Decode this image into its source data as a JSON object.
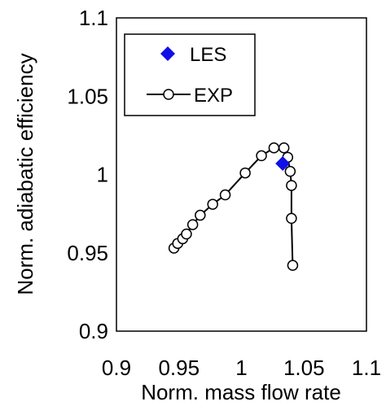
{
  "chart_data": {
    "type": "scatter",
    "title": "",
    "xlabel": "Norm. mass flow rate",
    "ylabel": "Norm. adiabatic efficiency",
    "xlim": [
      0.9,
      1.1
    ],
    "ylim": [
      0.9,
      1.1
    ],
    "xticks": [
      "0.9",
      "0.95",
      "1",
      "1.05",
      "1.1"
    ],
    "yticks": [
      "0.9",
      "0.95",
      "1",
      "1.05",
      "1.1"
    ],
    "grid": false,
    "legend_position": "top-left",
    "series": [
      {
        "name": "LES",
        "marker": "diamond",
        "line": false,
        "color": "#1010e6",
        "x": [
          1.033
        ],
        "y": [
          1.007
        ]
      },
      {
        "name": "EXP",
        "marker": "open-circle",
        "line": true,
        "color": "#000000",
        "x": [
          0.946,
          0.949,
          0.953,
          0.956,
          0.961,
          0.967,
          0.977,
          0.987,
          1.003,
          1.016,
          1.026,
          1.034,
          1.037,
          1.039,
          1.04,
          1.04,
          1.041
        ],
        "y": [
          0.953,
          0.956,
          0.959,
          0.962,
          0.968,
          0.974,
          0.981,
          0.987,
          1.001,
          1.012,
          1.017,
          1.017,
          1.011,
          1.002,
          0.993,
          0.972,
          0.942
        ]
      }
    ]
  }
}
